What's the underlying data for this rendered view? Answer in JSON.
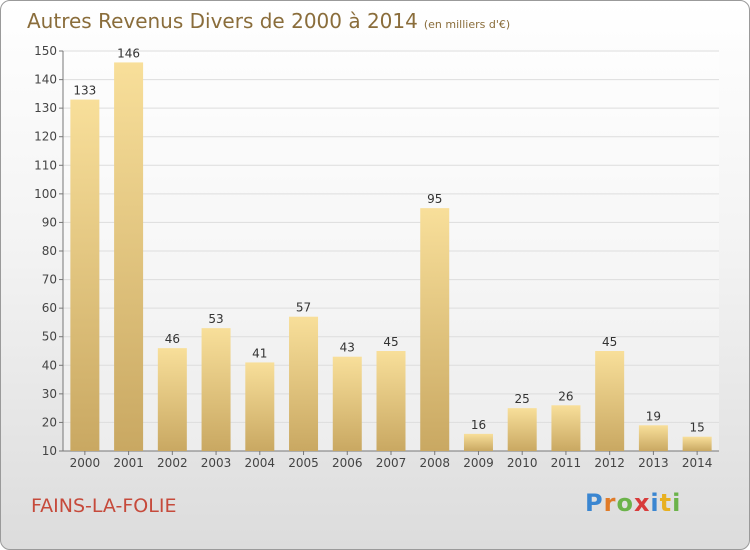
{
  "header": {
    "title": "Autres Revenus Divers de 2000 à 2014",
    "unit_note": "(en milliers d'€)"
  },
  "commune": "FAINS-LA-FOLIE",
  "logo": {
    "text": "Proxiti",
    "letters": [
      {
        "ch": "P",
        "color": "#3a86d1"
      },
      {
        "ch": "r",
        "color": "#e07b28"
      },
      {
        "ch": "o",
        "color": "#6bb34a"
      },
      {
        "ch": "x",
        "color": "#d83b3b"
      },
      {
        "ch": "i",
        "color": "#3a86d1"
      },
      {
        "ch": "t",
        "color": "#e8b020"
      },
      {
        "ch": "i",
        "color": "#6bb34a"
      }
    ]
  },
  "colors": {
    "title": "#8a6d3b",
    "commune": "#c64a3b",
    "bar_top": "#f8df9a",
    "bar_bottom": "#c9a862",
    "grid": "#dddddd",
    "axis": "#777777"
  },
  "chart_data": {
    "type": "bar",
    "categories": [
      "2000",
      "2001",
      "2002",
      "2003",
      "2004",
      "2005",
      "2006",
      "2007",
      "2008",
      "2009",
      "2010",
      "2011",
      "2012",
      "2013",
      "2014"
    ],
    "values": [
      133,
      146,
      46,
      53,
      41,
      57,
      43,
      45,
      95,
      16,
      25,
      26,
      45,
      19,
      15
    ],
    "ylim": [
      10,
      150
    ],
    "yticks": [
      10,
      20,
      30,
      40,
      50,
      60,
      70,
      80,
      90,
      100,
      110,
      120,
      130,
      140,
      150
    ],
    "grid": true,
    "data_labels": true
  }
}
